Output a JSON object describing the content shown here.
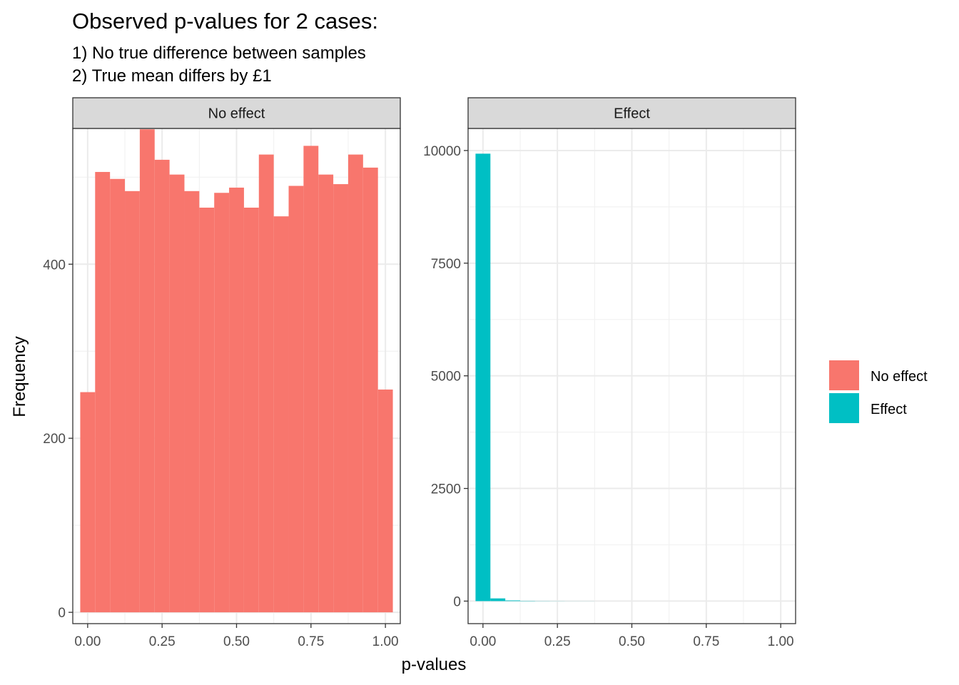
{
  "chart_data": {
    "type": "bar",
    "title": "Observed p-values for 2 cases:",
    "subtitle_lines": [
      "1) No true difference between samples",
      "2) True mean differs by £1"
    ],
    "xlabel": "p-values",
    "ylabel": "Frequency",
    "grid": true,
    "legend_position": "right",
    "bin_width": 0.05,
    "bin_centers": [
      0.0,
      0.05,
      0.1,
      0.15,
      0.2,
      0.25,
      0.3,
      0.35,
      0.4,
      0.45,
      0.5,
      0.55,
      0.6,
      0.65,
      0.7,
      0.75,
      0.8,
      0.85,
      0.9,
      0.95,
      1.0
    ],
    "legend": [
      {
        "label": "No effect",
        "color": "#F8766D"
      },
      {
        "label": "Effect",
        "color": "#00BFC4"
      }
    ],
    "panels": [
      {
        "strip": "No effect",
        "fill_color": "#F8766D",
        "xlim": [
          -0.05,
          1.05
        ],
        "ylim": [
          -13,
          556
        ],
        "x_ticks": [
          0,
          0.25,
          0.5,
          0.75,
          1
        ],
        "x_tick_labels": [
          "0.00",
          "0.25",
          "0.50",
          "0.75",
          "1.00"
        ],
        "y_ticks": [
          0,
          200,
          400
        ],
        "y_tick_labels": [
          "0",
          "200",
          "400"
        ],
        "values": [
          253,
          506,
          498,
          484,
          555,
          520,
          503,
          484,
          465,
          482,
          488,
          465,
          526,
          455,
          490,
          536,
          503,
          492,
          526,
          511,
          256
        ]
      },
      {
        "strip": "Effect",
        "fill_color": "#00BFC4",
        "xlim": [
          -0.05,
          1.05
        ],
        "ylim": [
          -500,
          10490
        ],
        "x_ticks": [
          0,
          0.25,
          0.5,
          0.75,
          1
        ],
        "x_tick_labels": [
          "0.00",
          "0.25",
          "0.50",
          "0.75",
          "1.00"
        ],
        "y_ticks": [
          0,
          2500,
          5000,
          7500,
          10000
        ],
        "y_tick_labels": [
          "0",
          "2500",
          "5000",
          "7500",
          "10000"
        ],
        "values": [
          9930,
          60,
          15,
          6,
          3,
          2,
          1,
          1,
          0,
          0,
          0,
          0,
          0,
          0,
          0,
          0,
          0,
          0,
          0,
          0,
          0
        ]
      }
    ]
  }
}
